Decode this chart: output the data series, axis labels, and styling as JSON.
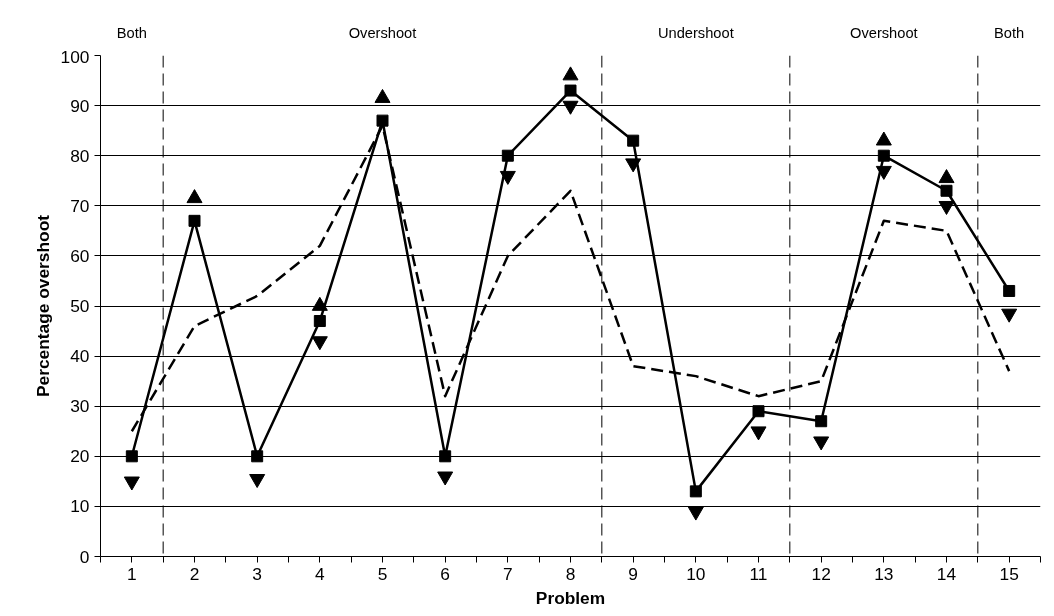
{
  "chart_data": {
    "type": "line",
    "xlabel": "Problem",
    "ylabel": "Percentage overshoot",
    "x": [
      1,
      2,
      3,
      4,
      5,
      6,
      7,
      8,
      9,
      10,
      11,
      12,
      13,
      14,
      15
    ],
    "xlim": [
      0.5,
      15.5
    ],
    "xticks": [
      {
        "value": 0.5,
        "label": null
      },
      1,
      {
        "value": 1.5,
        "label": null
      },
      2,
      {
        "value": 2.5,
        "label": null
      },
      3,
      {
        "value": 3.5,
        "label": null
      },
      4,
      {
        "value": 4.5,
        "label": null
      },
      5,
      {
        "value": 5.5,
        "label": null
      },
      6,
      {
        "value": 6.5,
        "label": null
      },
      7,
      {
        "value": 7.5,
        "label": null
      },
      8,
      {
        "value": 8.5,
        "label": null
      },
      9,
      {
        "value": 9.5,
        "label": null
      },
      10,
      {
        "value": 10.5,
        "label": null
      },
      11,
      {
        "value": 11.5,
        "label": null
      },
      12,
      {
        "value": 12.5,
        "label": null
      },
      13,
      {
        "value": 13.5,
        "label": null
      },
      14,
      {
        "value": 14.5,
        "label": null
      },
      15,
      {
        "value": 15.5,
        "label": null
      }
    ],
    "ylim": [
      0,
      100
    ],
    "yticks": [
      0,
      10,
      20,
      30,
      40,
      50,
      60,
      70,
      80,
      90,
      100
    ],
    "grid": "y",
    "series": [
      {
        "type": "scatter",
        "color": "#000000",
        "marker": "triangle",
        "values": [
          null,
          71.5,
          null,
          50,
          91.5,
          null,
          null,
          96,
          null,
          null,
          null,
          null,
          83,
          75.5,
          null
        ]
      },
      {
        "type": "scatter",
        "color": "#000000",
        "values": [
          15,
          null,
          15.5,
          43,
          null,
          16,
          76,
          90,
          78.5,
          9,
          25,
          23,
          77,
          70,
          48.5
        ]
      },
      {
        "color": "#000000",
        "line_style": "solid",
        "marker": "square",
        "values": [
          20,
          67,
          20,
          47,
          87,
          20,
          80,
          93,
          83,
          13,
          29,
          27,
          80,
          73,
          53
        ]
      },
      {
        "color": "#000000",
        "line_style": "dashed",
        "marker": "none",
        "values": [
          25,
          46,
          52,
          62,
          86,
          32,
          60,
          73,
          38,
          36,
          32,
          35,
          67,
          65,
          37
        ]
      }
    ],
    "ref_lines": [
      {
        "axis": "x",
        "value": 1.5,
        "label": null,
        "line_style": "dashed"
      },
      {
        "axis": "x",
        "value": 8.5,
        "label": null,
        "line_style": "dashed"
      },
      {
        "axis": "x",
        "value": 11.5,
        "label": null,
        "line_style": "dashed"
      },
      {
        "axis": "x",
        "value": 14.5,
        "label": null,
        "line_style": "dashed"
      }
    ],
    "annotations": [
      "Both",
      "Overshoot",
      "Undershoot",
      "Overshoot",
      "Both"
    ]
  }
}
